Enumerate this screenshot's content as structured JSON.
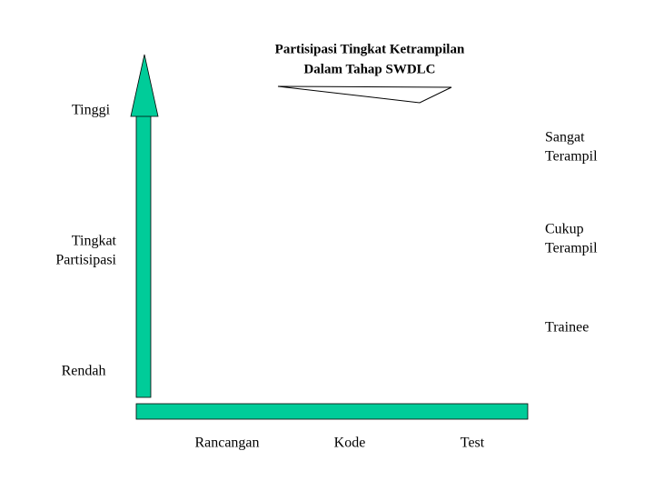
{
  "title": {
    "lines": [
      "Partisipasi Tingkat Ketrampilan",
      "Dalam Tahap SWDLC"
    ]
  },
  "y_axis": {
    "high": "Tinggi",
    "label": [
      "Tingkat",
      "Partisipasi"
    ],
    "low": "Rendah"
  },
  "levels": [
    [
      "Sangat",
      "Terampil"
    ],
    [
      "Cukup",
      "Terampil"
    ],
    [
      "Trainee"
    ]
  ],
  "stages": [
    "Rancangan",
    "Kode",
    "Test"
  ]
}
